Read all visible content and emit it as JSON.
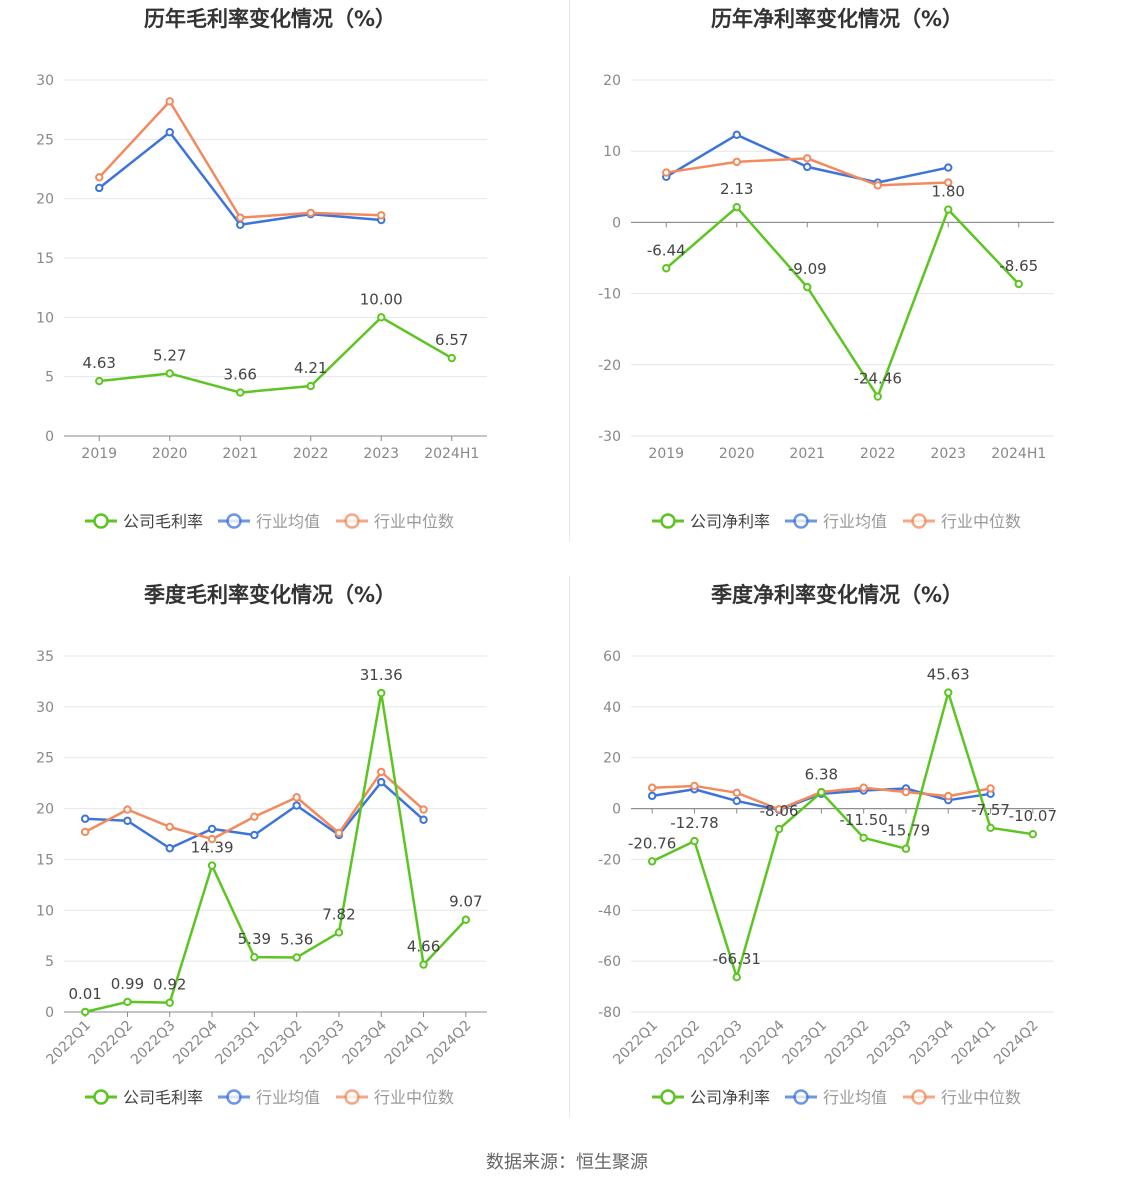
{
  "colors": {
    "company": "#5cc521",
    "avg": "#3d74db",
    "median": "#f28a5e"
  },
  "source": "数据来源：恒生聚源",
  "chart_data": [
    {
      "type": "line",
      "title": "历年毛利率变化情况（%）",
      "categories": [
        "2019",
        "2020",
        "2021",
        "2022",
        "2023",
        "2024H1"
      ],
      "ylim": [
        0,
        30
      ],
      "yticks": [
        0,
        5,
        10,
        15,
        20,
        25,
        30
      ],
      "rotate_x": false,
      "series": [
        {
          "name": "公司毛利率",
          "key": "company",
          "values": [
            4.63,
            5.27,
            3.66,
            4.21,
            10.0,
            6.57
          ],
          "labels": [
            "4.63",
            "5.27",
            "3.66",
            "4.21",
            "10.00",
            "6.57"
          ]
        },
        {
          "name": "行业均值",
          "key": "avg",
          "values": [
            20.9,
            25.6,
            17.8,
            18.7,
            18.2,
            null
          ]
        },
        {
          "name": "行业中位数",
          "key": "median",
          "values": [
            21.8,
            28.2,
            18.4,
            18.8,
            18.6,
            null
          ]
        }
      ]
    },
    {
      "type": "line",
      "title": "历年净利率变化情况（%）",
      "categories": [
        "2019",
        "2020",
        "2021",
        "2022",
        "2023",
        "2024H1"
      ],
      "ylim": [
        -30,
        20
      ],
      "yticks": [
        -30,
        -20,
        -10,
        0,
        10,
        20
      ],
      "rotate_x": false,
      "series": [
        {
          "name": "公司净利率",
          "key": "company",
          "values": [
            -6.44,
            2.13,
            -9.09,
            -24.46,
            1.8,
            -8.65
          ],
          "labels": [
            "-6.44",
            "2.13",
            "-9.09",
            "-24.46",
            "1.80",
            "-8.65"
          ]
        },
        {
          "name": "行业均值",
          "key": "avg",
          "values": [
            6.4,
            12.3,
            7.8,
            5.6,
            7.7,
            null
          ]
        },
        {
          "name": "行业中位数",
          "key": "median",
          "values": [
            7.0,
            8.5,
            9.0,
            5.2,
            5.6,
            null
          ]
        }
      ]
    },
    {
      "type": "line",
      "title": "季度毛利率变化情况（%）",
      "categories": [
        "2022Q1",
        "2022Q2",
        "2022Q3",
        "2022Q4",
        "2023Q1",
        "2023Q2",
        "2023Q3",
        "2023Q4",
        "2024Q1",
        "2024Q2"
      ],
      "ylim": [
        0,
        35
      ],
      "yticks": [
        0,
        5,
        10,
        15,
        20,
        25,
        30,
        35
      ],
      "rotate_x": true,
      "series": [
        {
          "name": "公司毛利率",
          "key": "company",
          "values": [
            0.01,
            0.99,
            0.92,
            14.39,
            5.39,
            5.36,
            7.82,
            31.36,
            4.66,
            9.07
          ],
          "labels": [
            "0.01",
            "0.99",
            "0.92",
            "14.39",
            "5.39",
            "5.36",
            "7.82",
            "31.36",
            "4.66",
            "9.07"
          ]
        },
        {
          "name": "行业均值",
          "key": "avg",
          "values": [
            19.0,
            18.8,
            16.1,
            18.0,
            17.4,
            20.3,
            17.4,
            22.6,
            18.9,
            null
          ]
        },
        {
          "name": "行业中位数",
          "key": "median",
          "values": [
            17.7,
            19.9,
            18.2,
            17.0,
            19.2,
            21.1,
            17.6,
            23.6,
            19.9,
            null
          ]
        }
      ]
    },
    {
      "type": "line",
      "title": "季度净利率变化情况（%）",
      "categories": [
        "2022Q1",
        "2022Q2",
        "2022Q3",
        "2022Q4",
        "2023Q1",
        "2023Q2",
        "2023Q3",
        "2023Q4",
        "2024Q1",
        "2024Q2"
      ],
      "ylim": [
        -80,
        60
      ],
      "yticks": [
        -80,
        -60,
        -40,
        -20,
        0,
        20,
        40,
        60
      ],
      "rotate_x": true,
      "series": [
        {
          "name": "公司净利率",
          "key": "company",
          "values": [
            -20.76,
            -12.78,
            -66.31,
            -8.06,
            6.38,
            -11.5,
            -15.79,
            45.63,
            -7.57,
            -10.07
          ],
          "labels": [
            "-20.76",
            "-12.78",
            "-66.31",
            "-8.06",
            "6.38",
            "-11.50",
            "-15.79",
            "45.63",
            "-7.57",
            "-10.07"
          ]
        },
        {
          "name": "行业均值",
          "key": "avg",
          "values": [
            5.0,
            7.6,
            3.0,
            -0.5,
            5.8,
            7.1,
            7.9,
            3.3,
            5.8,
            null
          ]
        },
        {
          "name": "行业中位数",
          "key": "median",
          "values": [
            8.2,
            8.9,
            6.2,
            -0.3,
            6.5,
            8.2,
            6.5,
            4.9,
            7.9,
            null
          ]
        }
      ]
    }
  ]
}
